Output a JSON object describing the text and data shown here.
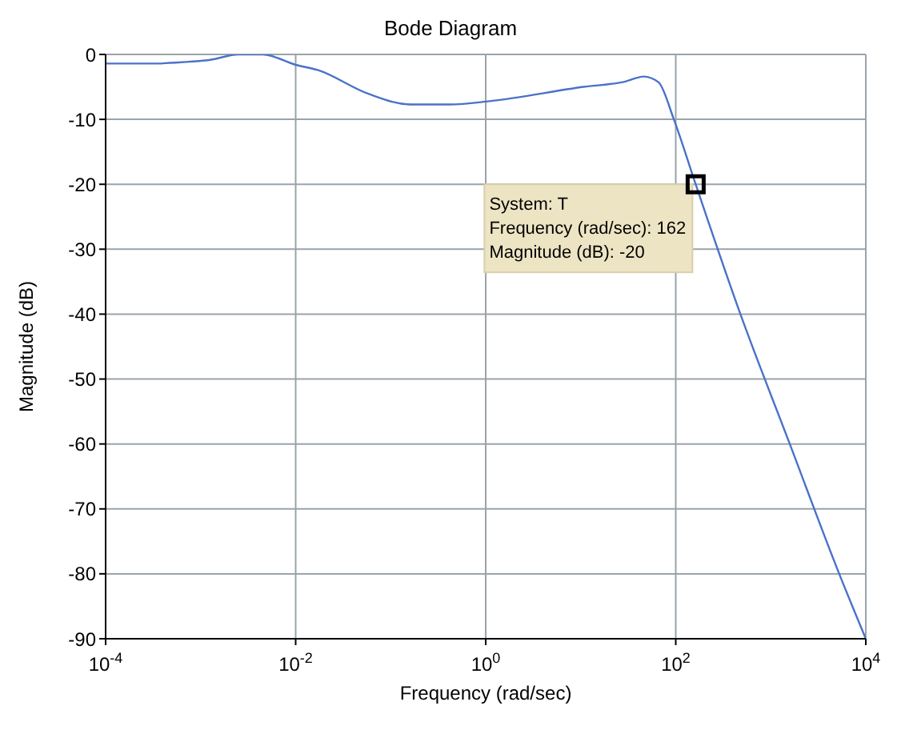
{
  "chart_data": {
    "type": "line",
    "title": "Bode Diagram",
    "xlabel": "Frequency  (rad/sec)",
    "ylabel": "Magnitude (dB)",
    "log": "x",
    "grid": true,
    "marker": "none",
    "line_style": "solid",
    "x": [
      0.0001,
      0.00035,
      0.00047,
      0.0013,
      0.0025,
      0.0045,
      0.01,
      0.017,
      0.059,
      0.16,
      0.42,
      1.1,
      10.7,
      29,
      46,
      66,
      95,
      162,
      479,
      1585,
      5250,
      10000
    ],
    "series": [
      {
        "color": "#4a72c8",
        "values": [
          -1.4,
          -1.4,
          -1.3,
          -0.8,
          0,
          0,
          -1.6,
          -2.4,
          -6.1,
          -7.7,
          -7.7,
          -7.2,
          -5,
          -4.2,
          -3.4,
          -4.3,
          -9.9,
          -20,
          -40,
          -60,
          -80,
          -90
        ]
      }
    ],
    "xlim": [
      0.0001,
      10000
    ],
    "xticks": [
      {
        "value": 0.0001,
        "label": "10$^{-4}$"
      },
      {
        "value": 0.01,
        "label": "10$^{-2}$"
      },
      {
        "value": 1,
        "label": "10$^{0}$"
      },
      {
        "value": 100,
        "label": "10$^{2}$"
      },
      {
        "value": 10000,
        "label": "10$^{4}$"
      }
    ],
    "ylim": [
      -90,
      0
    ],
    "yticks": [
      -90,
      -80,
      -70,
      -60,
      -50,
      -40,
      -30,
      -20,
      -10,
      0
    ],
    "annotations": [
      {
        "text": "System: T\nFrequency (rad/sec): 162\nMagnitude (dB): -20",
        "x": 162,
        "y": -20
      }
    ]
  }
}
